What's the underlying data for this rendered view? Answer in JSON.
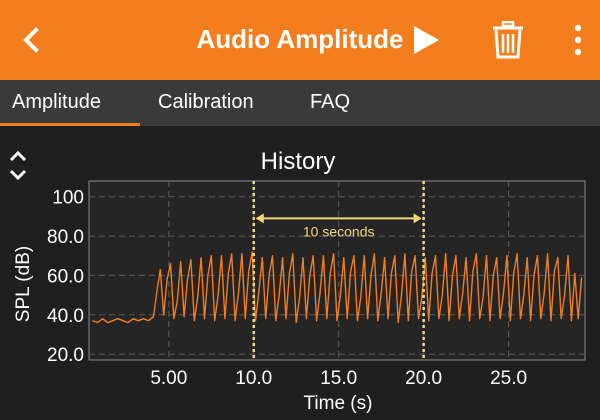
{
  "app_bar": {
    "title": "Audio Amplitude",
    "back_icon": "chevron-left-icon",
    "play_icon": "play-icon",
    "delete_icon": "trash-icon",
    "more_icon": "more-vertical-icon"
  },
  "tabs": [
    {
      "label": "Amplitude",
      "active": true
    },
    {
      "label": "Calibration",
      "active": false
    },
    {
      "label": "FAQ",
      "active": false
    }
  ],
  "colors": {
    "accent": "#f47d1e",
    "marker": "#f2d77a",
    "plot_background": "#252525",
    "tab_bar": "#3a3a3a"
  },
  "chart_data": {
    "type": "line",
    "title": "History",
    "xlabel": "Time (s)",
    "ylabel": "SPL (dB)",
    "xlim": [
      0.3,
      29.5
    ],
    "ylim": [
      17,
      108
    ],
    "x_ticks": [
      5,
      10,
      15,
      20,
      25
    ],
    "x_tick_labels": [
      "5.00",
      "10.0",
      "15.0",
      "20.0",
      "25.0"
    ],
    "y_ticks": [
      20,
      40,
      60,
      80,
      100
    ],
    "y_tick_labels": [
      "20.0",
      "40.0",
      "60.0",
      "80.0",
      "100"
    ],
    "grid": true,
    "annotation": {
      "label": "10 seconds",
      "x_start": 10,
      "x_end": 20,
      "y": 89
    },
    "series": [
      {
        "color": "#f47d1e",
        "x": [
          0.5,
          0.8,
          1.1,
          1.4,
          1.7,
          2.0,
          2.3,
          2.6,
          2.9,
          3.2,
          3.5,
          3.8,
          4.1,
          4.3,
          4.5,
          4.7,
          4.9,
          5.1,
          5.3,
          5.5,
          5.7,
          5.9,
          6.1,
          6.3,
          6.5,
          6.7,
          6.9,
          7.1,
          7.3,
          7.5,
          7.7,
          7.9,
          8.1,
          8.3,
          8.5,
          8.7,
          8.9,
          9.1,
          9.3,
          9.5,
          9.7,
          9.9,
          10.1,
          10.3,
          10.5,
          10.7,
          10.9,
          11.1,
          11.3,
          11.5,
          11.7,
          11.9,
          12.1,
          12.3,
          12.5,
          12.7,
          12.9,
          13.1,
          13.3,
          13.5,
          13.7,
          13.9,
          14.1,
          14.3,
          14.5,
          14.7,
          14.9,
          15.1,
          15.3,
          15.5,
          15.7,
          15.9,
          16.1,
          16.3,
          16.5,
          16.7,
          16.9,
          17.1,
          17.3,
          17.5,
          17.7,
          17.9,
          18.1,
          18.3,
          18.5,
          18.7,
          18.9,
          19.1,
          19.3,
          19.5,
          19.7,
          19.9,
          20.1,
          20.3,
          20.5,
          20.7,
          20.9,
          21.1,
          21.3,
          21.5,
          21.7,
          21.9,
          22.1,
          22.3,
          22.5,
          22.7,
          22.9,
          23.1,
          23.3,
          23.5,
          23.7,
          23.9,
          24.1,
          24.3,
          24.5,
          24.7,
          24.9,
          25.1,
          25.3,
          25.5,
          25.7,
          25.9,
          26.1,
          26.3,
          26.5,
          26.7,
          26.9,
          27.1,
          27.3,
          27.5,
          27.7,
          27.9,
          28.1,
          28.3,
          28.5,
          28.7,
          28.9,
          29.1,
          29.3
        ],
        "values": [
          37,
          36,
          38,
          36,
          37,
          38,
          37,
          36,
          38,
          37,
          38,
          37,
          39,
          52,
          63,
          40,
          58,
          66,
          38,
          47,
          67,
          39,
          58,
          68,
          37,
          49,
          69,
          38,
          60,
          70,
          37,
          50,
          70,
          38,
          61,
          71,
          37,
          51,
          71,
          38,
          62,
          72,
          37,
          52,
          69,
          38,
          60,
          70,
          37,
          50,
          69,
          38,
          61,
          71,
          36,
          49,
          69,
          38,
          60,
          70,
          37,
          51,
          70,
          38,
          61,
          71,
          37,
          50,
          69,
          38,
          62,
          70,
          37,
          49,
          70,
          38,
          60,
          71,
          37,
          51,
          69,
          38,
          61,
          70,
          36,
          50,
          71,
          37,
          62,
          70,
          38,
          49,
          69,
          37,
          61,
          70,
          38,
          50,
          71,
          37,
          60,
          70,
          38,
          51,
          69,
          37,
          62,
          71,
          38,
          49,
          70,
          37,
          60,
          69,
          38,
          51,
          70,
          37,
          61,
          71,
          38,
          50,
          69,
          37,
          60,
          70,
          38,
          51,
          71,
          37,
          62,
          69,
          38,
          50,
          70,
          37,
          61,
          38,
          59
        ]
      }
    ]
  }
}
